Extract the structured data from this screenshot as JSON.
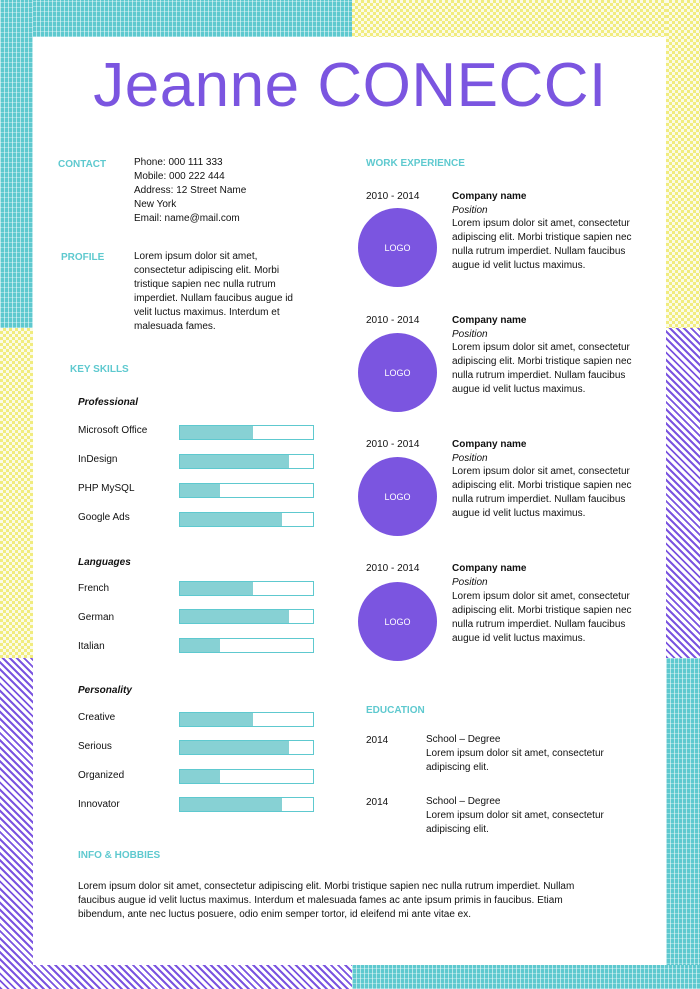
{
  "name": "Jeanne CONECCI",
  "colors": {
    "accent_purple": "#7b55e0",
    "accent_teal": "#5ec9cf",
    "bar_fill": "#87d1d4",
    "pattern_yellow": "#f1ec7e"
  },
  "contact": {
    "title": "CONTACT",
    "lines": [
      "Phone: 000 111 333",
      "Mobile: 000 222 444",
      "Address: 12 Street  Name",
      "New York",
      "Email: name@mail.com"
    ]
  },
  "profile": {
    "title": "PROFILE",
    "lines": [
      "Lorem  ipsum dolor sit amet,",
      "consectetur  adipiscing elit. Morbi",
      "tristique sapien nec nulla rutrum",
      "imperdiet. Nullam faucibus augue id",
      "velit luctus maximus. Interdum et",
      "malesuada fames."
    ]
  },
  "skills": {
    "title": "KEY SKILLS",
    "groups": [
      {
        "heading": "Professional",
        "items": [
          {
            "label": "Microsoft Office",
            "level": 0.55
          },
          {
            "label": "InDesign",
            "level": 0.82
          },
          {
            "label": "PHP MySQL",
            "level": 0.3
          },
          {
            "label": "Google Ads",
            "level": 0.77
          }
        ]
      },
      {
        "heading": "Languages",
        "items": [
          {
            "label": "French",
            "level": 0.55
          },
          {
            "label": "German",
            "level": 0.82
          },
          {
            "label": "Italian",
            "level": 0.3
          }
        ]
      },
      {
        "heading": "Personality",
        "items": [
          {
            "label": "Creative",
            "level": 0.55
          },
          {
            "label": "Serious",
            "level": 0.82
          },
          {
            "label": "Organized",
            "level": 0.3
          },
          {
            "label": "Innovator",
            "level": 0.77
          }
        ]
      }
    ]
  },
  "hobbies": {
    "title": "INFO & HOBBIES",
    "lines": [
      "Lorem  ipsum dolor sit amet, consectetur  adipiscing elit. Morbi tristique sapien nec nulla rutrum imperdiet. Nullam",
      "faucibus augue id velit luctus maximus. Interdum et malesuada fames ac ante ipsum primis in faucibus. Etiam",
      "bibendum, ante nec luctus posuere, odio enim  semper tortor,  id eleifend mi ante vitae ex."
    ]
  },
  "work": {
    "title": "WORK EXPERIENCE",
    "items": [
      {
        "years": "2010 - 2014",
        "logo": "LOGO",
        "company": "Company name",
        "position": "Position",
        "lines": [
          "Lorem  ipsum dolor sit amet, consectetur",
          "adipiscing elit. Morbi tristique sapien nec",
          "nulla rutrum imperdiet.  Nullam faucibus",
          "augue id velit luctus maximus."
        ]
      },
      {
        "years": "2010 - 2014",
        "logo": "LOGO",
        "company": "Company name",
        "position": "Position",
        "lines": [
          "Lorem  ipsum dolor sit amet, consectetur",
          "adipiscing elit. Morbi tristique sapien nec",
          "nulla rutrum imperdiet.  Nullam faucibus",
          "augue id velit luctus maximus."
        ]
      },
      {
        "years": "2010 - 2014",
        "logo": "LOGO",
        "company": "Company name",
        "position": "Position",
        "lines": [
          "Lorem  ipsum dolor sit amet, consectetur",
          "adipiscing elit. Morbi tristique sapien nec",
          "nulla rutrum imperdiet.  Nullam faucibus",
          "augue id velit luctus maximus."
        ]
      },
      {
        "years": "2010 - 2014",
        "logo": "LOGO",
        "company": "Company name",
        "position": "Position",
        "lines": [
          "Lorem  ipsum dolor sit amet, consectetur",
          "adipiscing elit. Morbi tristique sapien nec",
          "nulla rutrum imperdiet.  Nullam faucibus",
          "augue id velit luctus maximus."
        ]
      }
    ]
  },
  "education": {
    "title": "EDUCATION",
    "items": [
      {
        "year": "2014",
        "school": "School – Degree",
        "lines": [
          "Lorem  ipsum dolor sit amet, consectetur",
          "adipiscing elit."
        ]
      },
      {
        "year": "2014",
        "school": "School – Degree",
        "lines": [
          "Lorem  ipsum dolor sit amet, consectetur",
          "adipiscing elit."
        ]
      }
    ]
  }
}
